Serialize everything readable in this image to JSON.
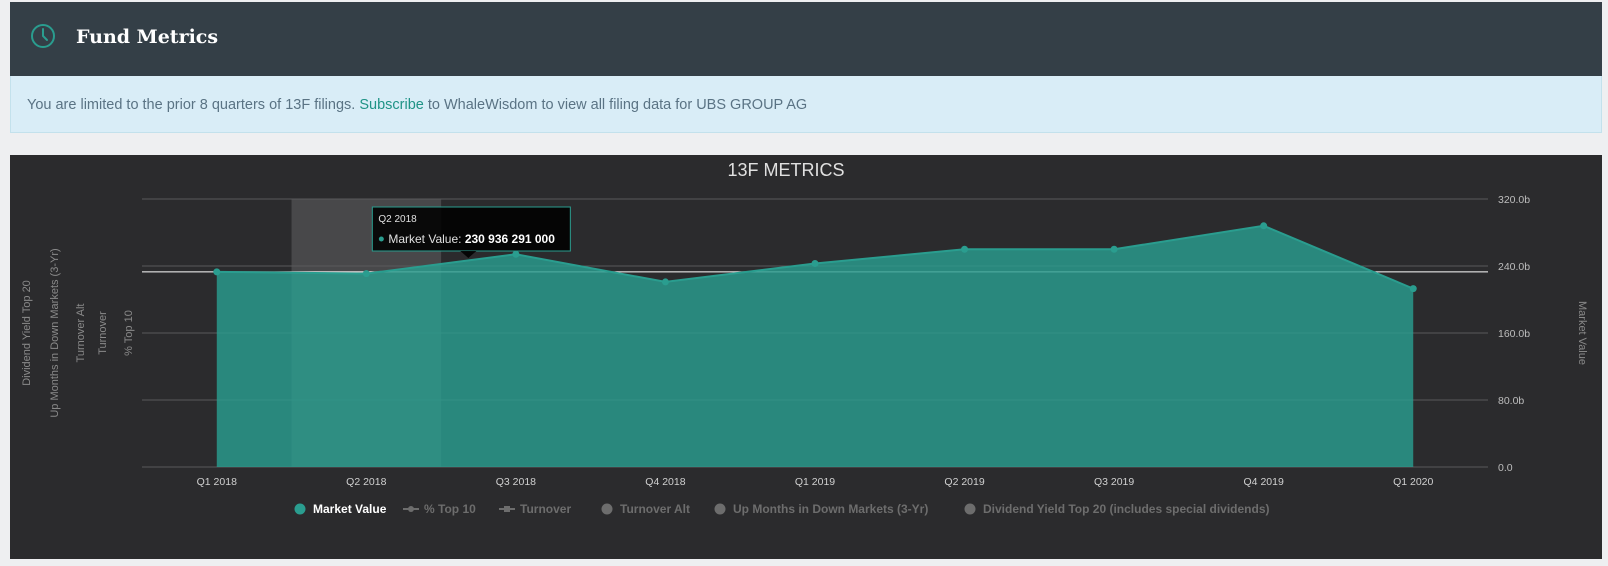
{
  "header": {
    "title": "Fund Metrics",
    "icon": "clock-icon"
  },
  "notice": {
    "text_before": "You are limited to the prior 8 quarters of 13F filings. ",
    "link": "Subscribe",
    "text_after": " to WhaleWisdom to view all filing data for UBS GROUP AG"
  },
  "colors": {
    "series": "#2a9d8f",
    "header_bg": "#343f47",
    "chart_bg": "#2b2b2d",
    "notice_bg": "#d9edf7"
  },
  "chart_data": {
    "type": "area",
    "title": "13F METRICS",
    "categories": [
      "Q1 2018",
      "Q2 2018",
      "Q3 2018",
      "Q4 2018",
      "Q1 2019",
      "Q2 2019",
      "Q3 2019",
      "Q4 2019",
      "Q1 2020"
    ],
    "series": [
      {
        "name": "Market Value",
        "values": [
          233000000000,
          230936291000,
          254000000000,
          221000000000,
          243000000000,
          260000000000,
          260000000000,
          288000000000,
          213000000000
        ]
      }
    ],
    "y_right": {
      "label": "Market Value",
      "ticks": [
        "0.0",
        "80.0b",
        "160.0b",
        "240.0b",
        "320.0b"
      ],
      "range": [
        0,
        320000000000
      ]
    },
    "y_left_labels": [
      "Dividend Yield Top 20",
      "Up Months in Down Markets (3-Yr)",
      "Turnover Alt",
      "Turnover",
      "% Top 10"
    ],
    "legend": [
      {
        "name": "Market Value",
        "active": true,
        "marker": "circle"
      },
      {
        "name": "% Top 10",
        "active": false,
        "marker": "line-dot"
      },
      {
        "name": "Turnover",
        "active": false,
        "marker": "line-square"
      },
      {
        "name": "Turnover Alt",
        "active": false,
        "marker": "circle"
      },
      {
        "name": "Up Months in Down Markets (3-Yr)",
        "active": false,
        "marker": "circle"
      },
      {
        "name": "Dividend Yield Top 20 (includes special dividends)",
        "active": false,
        "marker": "circle"
      }
    ],
    "legend_position": "bottom",
    "grid": true,
    "tooltip": {
      "category": "Q2 2018",
      "series": "Market Value",
      "label": "Market Value: ",
      "value": "230 936 291 000"
    },
    "highlighted_category": "Q2 2018",
    "crosshair_value": 233000000000
  }
}
